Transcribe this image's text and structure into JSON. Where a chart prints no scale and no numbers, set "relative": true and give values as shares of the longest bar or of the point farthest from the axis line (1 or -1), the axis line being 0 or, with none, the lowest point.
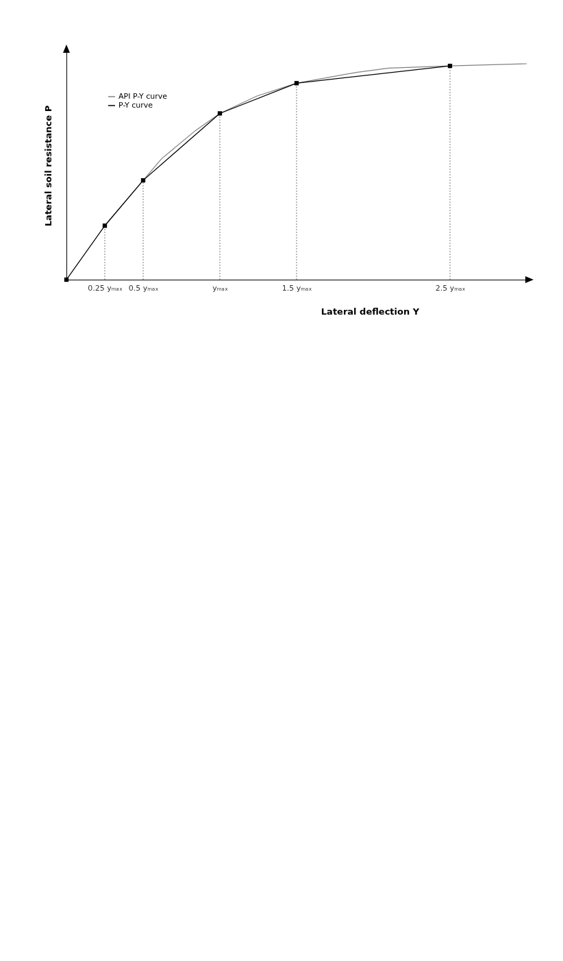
{
  "chart_data": {
    "type": "line",
    "relative": true,
    "xlabel": "Lateral deflection Y",
    "ylabel": "Lateral soil resistance P",
    "xlim": [
      0,
      3.0
    ],
    "xticks": [
      {
        "value": 0.25,
        "label": "0.25 yₘₐₓ"
      },
      {
        "value": 0.5,
        "label": "0.5 yₘₐₓ"
      },
      {
        "value": 1,
        "label": "yₘₐₓ"
      },
      {
        "value": 1.5,
        "label": "1.5 yₘₐₓ"
      },
      {
        "value": 2.5,
        "label": "2.5 yₘₐₓ"
      }
    ],
    "series": [
      {
        "name": "API P-Y curve",
        "color": "#808080",
        "marker": "none",
        "x": [
          0,
          0.25,
          0.5,
          0.62,
          0.84,
          1.0,
          1.24,
          1.5,
          1.89,
          2.1,
          2.5,
          3.0
        ],
        "values": [
          0,
          0.25,
          0.46,
          0.56,
          0.69,
          0.77,
          0.85,
          0.91,
          0.96,
          0.98,
          0.99,
          1.0
        ]
      },
      {
        "name": "P-Y curve",
        "color": "#000000",
        "marker": "square",
        "x": [
          0,
          0.25,
          0.5,
          1,
          1.5,
          2.5
        ],
        "values": [
          0,
          0.25,
          0.46,
          0.77,
          0.91,
          0.99
        ]
      }
    ],
    "ref_lines": [
      {
        "axis": "x",
        "value": 0.25,
        "label": null,
        "line_style": "dotted"
      },
      {
        "axis": "x",
        "value": 0.5,
        "label": null,
        "line_style": "dotted"
      },
      {
        "axis": "x",
        "value": 1,
        "label": null,
        "line_style": "dotted"
      },
      {
        "axis": "x",
        "value": 1.5,
        "label": null,
        "line_style": "dotted"
      },
      {
        "axis": "x",
        "value": 2.5,
        "label": null,
        "line_style": "dotted"
      }
    ],
    "grid": false,
    "legend": "top left"
  }
}
